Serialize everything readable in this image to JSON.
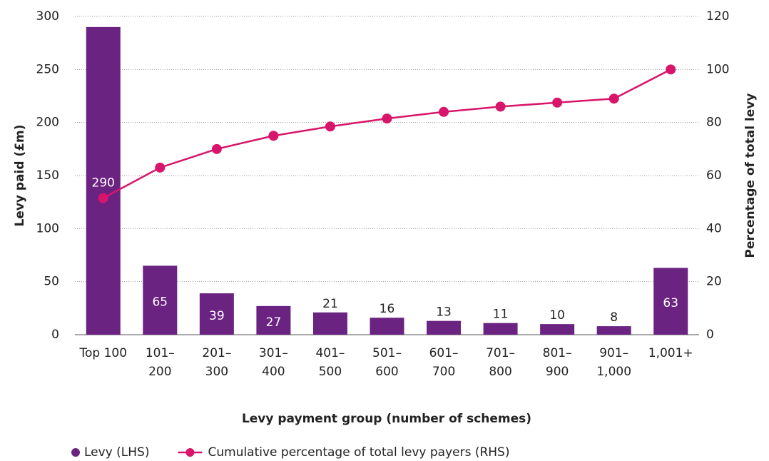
{
  "chart_data": {
    "type": "bar",
    "x_label": "Levy payment group (number of schemes)",
    "y_label": "Levy paid (£m)",
    "y2_label": "Percentage of total levy",
    "categories": [
      [
        "Top 100"
      ],
      [
        "101–",
        "200"
      ],
      [
        "201–",
        "300"
      ],
      [
        "301–",
        "400"
      ],
      [
        "401–",
        "500"
      ],
      [
        "501–",
        "600"
      ],
      [
        "601–",
        "700"
      ],
      [
        "701–",
        "800"
      ],
      [
        "801–",
        "900"
      ],
      [
        "901–",
        "1,000"
      ],
      [
        "1,001+"
      ]
    ],
    "series": [
      {
        "name": "Levy (LHS)",
        "type": "bar",
        "color": "#6b2382",
        "values": [
          290,
          65,
          39,
          27,
          21,
          16,
          13,
          11,
          10,
          8,
          63
        ]
      },
      {
        "name": "Cumulative percentage of total levy payers (RHS)",
        "type": "line",
        "axis": "y2",
        "color": "#d7156b",
        "values": [
          51.5,
          63,
          70,
          75,
          78.5,
          81.5,
          84,
          86,
          87.5,
          89,
          100
        ]
      }
    ],
    "ylim": [
      0,
      300
    ],
    "yticks": [
      0,
      50,
      100,
      150,
      200,
      250,
      300
    ],
    "y2lim": [
      0,
      120
    ],
    "y2ticks": [
      0,
      20,
      40,
      60,
      80,
      100,
      120
    ],
    "grid": true,
    "legend": "bottom"
  }
}
